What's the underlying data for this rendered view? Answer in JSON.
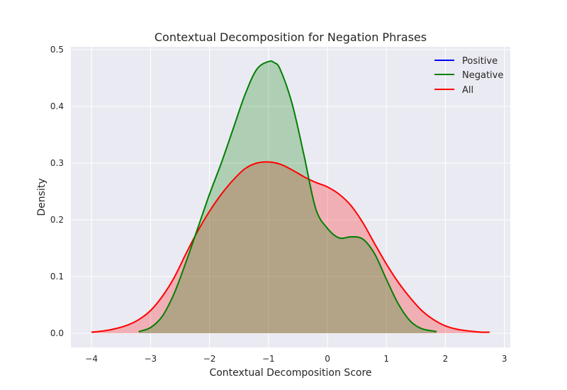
{
  "chart_data": {
    "type": "area",
    "title": "Contextual Decomposition for Negation Phrases",
    "xlabel": "Contextual Decomposition Score",
    "ylabel": "Density",
    "xlim": [
      -4.35,
      3.1
    ],
    "ylim": [
      -0.025,
      0.505
    ],
    "xticks": [
      -4,
      -3,
      -2,
      -1,
      0,
      1,
      2,
      3
    ],
    "xtick_labels": [
      "−4",
      "−3",
      "−2",
      "−1",
      "0",
      "1",
      "2",
      "3"
    ],
    "yticks": [
      0.0,
      0.1,
      0.2,
      0.3,
      0.4,
      0.5
    ],
    "ytick_labels": [
      "0.0",
      "0.1",
      "0.2",
      "0.3",
      "0.4",
      "0.5"
    ],
    "grid": true,
    "legend_position": "top-right",
    "series": [
      {
        "name": "Positive",
        "color": "#0000ff",
        "fill": false,
        "x": [],
        "y": []
      },
      {
        "name": "Negative",
        "color": "#008000",
        "fill": true,
        "x": [
          -3.2,
          -3.0,
          -2.8,
          -2.6,
          -2.4,
          -2.2,
          -2.0,
          -1.8,
          -1.6,
          -1.4,
          -1.2,
          -1.0,
          -0.9,
          -0.8,
          -0.6,
          -0.4,
          -0.2,
          0.0,
          0.2,
          0.4,
          0.6,
          0.8,
          1.0,
          1.2,
          1.4,
          1.6,
          1.85
        ],
        "y": [
          0.003,
          0.01,
          0.03,
          0.07,
          0.125,
          0.185,
          0.245,
          0.3,
          0.36,
          0.42,
          0.465,
          0.479,
          0.477,
          0.465,
          0.405,
          0.315,
          0.22,
          0.185,
          0.168,
          0.17,
          0.166,
          0.14,
          0.095,
          0.052,
          0.022,
          0.008,
          0.003
        ]
      },
      {
        "name": "All",
        "color": "#ff0000",
        "fill": true,
        "x": [
          -4.0,
          -3.8,
          -3.6,
          -3.4,
          -3.2,
          -3.0,
          -2.8,
          -2.6,
          -2.4,
          -2.2,
          -2.0,
          -1.8,
          -1.6,
          -1.4,
          -1.2,
          -1.0,
          -0.8,
          -0.6,
          -0.4,
          -0.2,
          0.0,
          0.2,
          0.4,
          0.6,
          0.8,
          1.0,
          1.2,
          1.4,
          1.6,
          1.8,
          2.0,
          2.2,
          2.4,
          2.6,
          2.75
        ],
        "y": [
          0.002,
          0.004,
          0.008,
          0.014,
          0.024,
          0.04,
          0.065,
          0.098,
          0.14,
          0.18,
          0.215,
          0.245,
          0.27,
          0.29,
          0.3,
          0.302,
          0.298,
          0.288,
          0.276,
          0.266,
          0.258,
          0.245,
          0.225,
          0.195,
          0.158,
          0.122,
          0.09,
          0.063,
          0.04,
          0.024,
          0.013,
          0.007,
          0.004,
          0.002,
          0.002
        ]
      }
    ]
  }
}
